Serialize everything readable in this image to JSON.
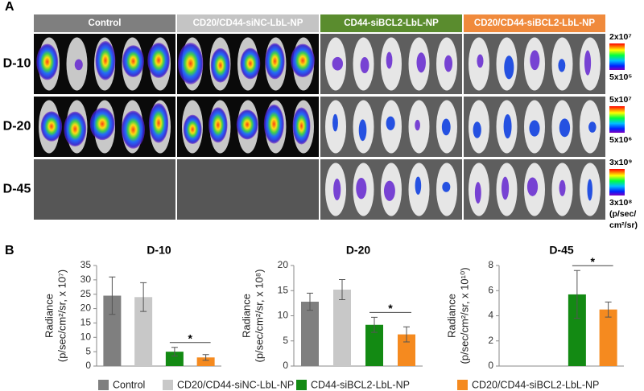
{
  "panel_a": {
    "label": "A",
    "groups": [
      "Control",
      "CD20/CD44-siNC-LbL-NP",
      "CD44-siBCL2-LbL-NP",
      "CD20/CD44-siBCL2-LbL-NP"
    ],
    "rows": [
      "D-10",
      "D-20",
      "D-45"
    ],
    "scales": [
      [
        "2x10⁷",
        "5x10⁵"
      ],
      [
        "5x10⁷",
        "5x10⁶"
      ],
      [
        "3x10⁹",
        "3x10⁸",
        "(p/sec/",
        "cm²/sr)"
      ]
    ]
  },
  "panel_b": {
    "label": "B",
    "legend": [
      {
        "name": "Control",
        "color": "#7f7f7f"
      },
      {
        "name": "CD20/CD44-siNC-LbL-NP",
        "color": "#c8c8c8"
      },
      {
        "name": "CD44-siBCL2-LbL-NP",
        "color": "#138a13"
      },
      {
        "name": "CD20/CD44-siBCL2-LbL-NP",
        "color": "#f58a1f"
      }
    ]
  },
  "chart_data": [
    {
      "type": "bar",
      "title": "D-10",
      "y_label": [
        "Radiance",
        "(p/sec/cm²/sr, x 10⁷)"
      ],
      "values": [
        24.5,
        24,
        5,
        3
      ],
      "errors": [
        6.5,
        5,
        1.5,
        1
      ],
      "ylim": [
        0,
        35
      ],
      "yticks": [
        0,
        5,
        10,
        15,
        20,
        25,
        30,
        35
      ],
      "annotation": "*"
    },
    {
      "type": "bar",
      "title": "D-20",
      "y_label": [
        "Radiance",
        "(p/sec/cm²/sr, x 10⁸)"
      ],
      "values": [
        12.8,
        15.2,
        8.2,
        6.3
      ],
      "errors": [
        1.7,
        2,
        1.5,
        1.5
      ],
      "ylim": [
        0,
        20
      ],
      "yticks": [
        0,
        5,
        10,
        15,
        20
      ],
      "annotation": "*"
    },
    {
      "type": "bar",
      "title": "D-45",
      "y_label": [
        "Radiance",
        "(p/sec/cm²/sr, x 10¹⁰)"
      ],
      "values": [
        null,
        null,
        5.7,
        4.5
      ],
      "errors": [
        null,
        null,
        1.9,
        0.6
      ],
      "ylim": [
        0,
        8
      ],
      "yticks": [
        0,
        2,
        4,
        6,
        8
      ],
      "annotation": "*"
    }
  ]
}
